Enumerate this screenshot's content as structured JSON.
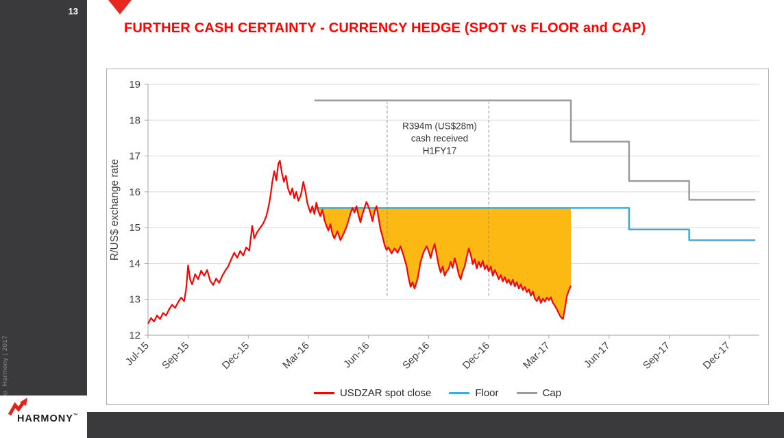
{
  "slide": {
    "page_number": "13",
    "copyright": "© Harmony | 2017",
    "title": "FURTHER CASH CERTAINTY - CURRENCY HEDGE (SPOT vs FLOOR and CAP)"
  },
  "logo": {
    "brand": "HARMONY",
    "trademark": "™"
  },
  "colors": {
    "brand_red": "#e2231a",
    "title_red": "#ff0000",
    "spot_red": "#ff0000",
    "floor_blue": "#41a8dc",
    "cap_gray": "#9b9ba4",
    "hedge_fill": "#fdb913",
    "sidebar_dark": "#3a3a3c"
  },
  "legend": [
    {
      "label": "USDZAR spot close",
      "color": "#ff0000"
    },
    {
      "label": "Floor",
      "color": "#41a8dc"
    },
    {
      "label": "Cap",
      "color": "#9b9ba4"
    }
  ],
  "chart_data": {
    "type": "line",
    "title": "",
    "ylabel": "R/US$ exchange rate",
    "ylim": [
      12,
      19
    ],
    "yticks": [
      12,
      13,
      14,
      15,
      16,
      17,
      18,
      19
    ],
    "xlim": [
      0,
      30.5
    ],
    "x_unit": "months from Jul-2015",
    "grid": "horizontal",
    "legend_position": "bottom",
    "xticks": [
      {
        "t": 0,
        "label": "Jul-15"
      },
      {
        "t": 2,
        "label": "Sep-15"
      },
      {
        "t": 5,
        "label": "Dec-15"
      },
      {
        "t": 8,
        "label": "Mar-16"
      },
      {
        "t": 11,
        "label": "Jun-16"
      },
      {
        "t": 14,
        "label": "Sep-16"
      },
      {
        "t": 17,
        "label": "Dec-16"
      },
      {
        "t": 20,
        "label": "Mar-17"
      },
      {
        "t": 23,
        "label": "Jun-17"
      },
      {
        "t": 26,
        "label": "Sep-17"
      },
      {
        "t": 29,
        "label": "Dec-17"
      }
    ],
    "annotation": {
      "lines": [
        "R394m (US$28m)",
        "cash received",
        "H1FY17"
      ],
      "t": 14.55,
      "value": 17.75
    },
    "dashed_lines": [
      {
        "t": 11.93,
        "v1": 13.1,
        "v2": 18.5
      },
      {
        "t": 17.0,
        "v1": 13.1,
        "v2": 18.5
      }
    ],
    "shaded_area": {
      "upper_series": "Floor",
      "lower_series": "USDZAR spot close",
      "from_t": 8.3,
      "to_t": 21.1,
      "color": "#fdb913"
    },
    "series": [
      {
        "name": "Cap",
        "color": "#9b9ba4",
        "width": 2.5,
        "data_name": "cap-line",
        "points": [
          [
            8.3,
            18.55
          ],
          [
            21.1,
            18.55
          ],
          [
            21.1,
            17.4
          ],
          [
            24,
            17.4
          ],
          [
            24,
            16.3
          ],
          [
            27,
            16.3
          ],
          [
            27,
            15.78
          ],
          [
            30.3,
            15.78
          ]
        ]
      },
      {
        "name": "Floor",
        "color": "#41a8dc",
        "width": 2.5,
        "data_name": "floor-line",
        "points": [
          [
            8.3,
            15.55
          ],
          [
            24,
            15.55
          ],
          [
            24,
            14.95
          ],
          [
            27,
            14.95
          ],
          [
            27,
            14.65
          ],
          [
            30.3,
            14.65
          ]
        ]
      },
      {
        "name": "USDZAR spot close",
        "color": "#ff0000",
        "width": 2.2,
        "data_name": "spot-line",
        "points": [
          [
            0,
            12.32
          ],
          [
            0.15,
            12.48
          ],
          [
            0.3,
            12.38
          ],
          [
            0.45,
            12.55
          ],
          [
            0.6,
            12.45
          ],
          [
            0.75,
            12.62
          ],
          [
            0.9,
            12.55
          ],
          [
            1.05,
            12.72
          ],
          [
            1.2,
            12.85
          ],
          [
            1.35,
            12.76
          ],
          [
            1.5,
            12.92
          ],
          [
            1.65,
            13.05
          ],
          [
            1.8,
            12.95
          ],
          [
            1.9,
            13.28
          ],
          [
            2.0,
            13.95
          ],
          [
            2.1,
            13.55
          ],
          [
            2.2,
            13.42
          ],
          [
            2.35,
            13.7
          ],
          [
            2.5,
            13.56
          ],
          [
            2.65,
            13.8
          ],
          [
            2.8,
            13.66
          ],
          [
            2.95,
            13.82
          ],
          [
            3.1,
            13.52
          ],
          [
            3.25,
            13.4
          ],
          [
            3.4,
            13.58
          ],
          [
            3.55,
            13.46
          ],
          [
            3.7,
            13.65
          ],
          [
            3.85,
            13.8
          ],
          [
            4.0,
            13.92
          ],
          [
            4.15,
            14.12
          ],
          [
            4.3,
            14.3
          ],
          [
            4.45,
            14.16
          ],
          [
            4.6,
            14.35
          ],
          [
            4.75,
            14.22
          ],
          [
            4.9,
            14.45
          ],
          [
            5.05,
            14.36
          ],
          [
            5.2,
            15.05
          ],
          [
            5.3,
            14.7
          ],
          [
            5.45,
            14.88
          ],
          [
            5.6,
            15.0
          ],
          [
            5.75,
            15.12
          ],
          [
            5.9,
            15.32
          ],
          [
            6.0,
            15.55
          ],
          [
            6.1,
            15.85
          ],
          [
            6.2,
            16.28
          ],
          [
            6.3,
            16.58
          ],
          [
            6.4,
            16.32
          ],
          [
            6.5,
            16.78
          ],
          [
            6.58,
            16.87
          ],
          [
            6.68,
            16.52
          ],
          [
            6.78,
            16.28
          ],
          [
            6.88,
            16.45
          ],
          [
            6.98,
            16.1
          ],
          [
            7.1,
            15.92
          ],
          [
            7.2,
            16.1
          ],
          [
            7.3,
            15.82
          ],
          [
            7.4,
            16.0
          ],
          [
            7.5,
            15.75
          ],
          [
            7.62,
            15.9
          ],
          [
            7.75,
            16.28
          ],
          [
            7.85,
            16.02
          ],
          [
            7.95,
            15.68
          ],
          [
            8.1,
            15.42
          ],
          [
            8.2,
            15.6
          ],
          [
            8.3,
            15.38
          ],
          [
            8.4,
            15.7
          ],
          [
            8.5,
            15.45
          ],
          [
            8.6,
            15.32
          ],
          [
            8.7,
            15.5
          ],
          [
            8.8,
            15.22
          ],
          [
            8.9,
            15.05
          ],
          [
            9.0,
            14.92
          ],
          [
            9.1,
            15.1
          ],
          [
            9.2,
            14.82
          ],
          [
            9.3,
            14.7
          ],
          [
            9.45,
            14.9
          ],
          [
            9.6,
            14.65
          ],
          [
            9.75,
            14.82
          ],
          [
            9.9,
            15.02
          ],
          [
            10.0,
            15.2
          ],
          [
            10.1,
            15.4
          ],
          [
            10.2,
            15.55
          ],
          [
            10.3,
            15.42
          ],
          [
            10.4,
            15.6
          ],
          [
            10.5,
            15.35
          ],
          [
            10.6,
            15.15
          ],
          [
            10.7,
            15.38
          ],
          [
            10.8,
            15.55
          ],
          [
            10.9,
            15.72
          ],
          [
            11.0,
            15.58
          ],
          [
            11.1,
            15.4
          ],
          [
            11.2,
            15.18
          ],
          [
            11.3,
            15.45
          ],
          [
            11.4,
            15.6
          ],
          [
            11.5,
            15.28
          ],
          [
            11.6,
            14.95
          ],
          [
            11.7,
            14.75
          ],
          [
            11.8,
            14.52
          ],
          [
            11.9,
            14.38
          ],
          [
            12.0,
            14.45
          ],
          [
            12.15,
            14.28
          ],
          [
            12.3,
            14.42
          ],
          [
            12.45,
            14.3
          ],
          [
            12.6,
            14.48
          ],
          [
            12.75,
            14.22
          ],
          [
            12.9,
            13.92
          ],
          [
            13.0,
            13.6
          ],
          [
            13.1,
            13.35
          ],
          [
            13.2,
            13.48
          ],
          [
            13.3,
            13.3
          ],
          [
            13.45,
            13.58
          ],
          [
            13.6,
            14.05
          ],
          [
            13.75,
            14.32
          ],
          [
            13.9,
            14.48
          ],
          [
            14.0,
            14.35
          ],
          [
            14.1,
            14.15
          ],
          [
            14.2,
            14.38
          ],
          [
            14.3,
            14.55
          ],
          [
            14.4,
            14.25
          ],
          [
            14.5,
            13.95
          ],
          [
            14.6,
            13.75
          ],
          [
            14.7,
            13.92
          ],
          [
            14.8,
            13.66
          ],
          [
            14.9,
            13.78
          ],
          [
            15.0,
            13.85
          ],
          [
            15.1,
            14.05
          ],
          [
            15.2,
            13.88
          ],
          [
            15.3,
            14.15
          ],
          [
            15.4,
            13.95
          ],
          [
            15.5,
            13.7
          ],
          [
            15.6,
            13.56
          ],
          [
            15.7,
            13.78
          ],
          [
            15.8,
            13.92
          ],
          [
            15.9,
            14.18
          ],
          [
            16.0,
            14.42
          ],
          [
            16.1,
            14.25
          ],
          [
            16.2,
            13.98
          ],
          [
            16.3,
            14.12
          ],
          [
            16.4,
            13.86
          ],
          [
            16.5,
            14.05
          ],
          [
            16.6,
            13.9
          ],
          [
            16.7,
            14.08
          ],
          [
            16.8,
            13.84
          ],
          [
            16.9,
            13.95
          ],
          [
            17.0,
            13.78
          ],
          [
            17.1,
            13.92
          ],
          [
            17.2,
            13.66
          ],
          [
            17.3,
            13.82
          ],
          [
            17.4,
            13.7
          ],
          [
            17.5,
            13.56
          ],
          [
            17.6,
            13.68
          ],
          [
            17.7,
            13.5
          ],
          [
            17.8,
            13.62
          ],
          [
            17.9,
            13.46
          ],
          [
            18.0,
            13.55
          ],
          [
            18.1,
            13.4
          ],
          [
            18.2,
            13.55
          ],
          [
            18.3,
            13.36
          ],
          [
            18.4,
            13.48
          ],
          [
            18.5,
            13.3
          ],
          [
            18.6,
            13.42
          ],
          [
            18.7,
            13.26
          ],
          [
            18.8,
            13.35
          ],
          [
            18.9,
            13.2
          ],
          [
            19.0,
            13.28
          ],
          [
            19.1,
            13.1
          ],
          [
            19.2,
            13.22
          ],
          [
            19.3,
            13.02
          ],
          [
            19.4,
            12.95
          ],
          [
            19.5,
            13.08
          ],
          [
            19.6,
            12.9
          ],
          [
            19.7,
            13.02
          ],
          [
            19.8,
            12.94
          ],
          [
            19.9,
            13.05
          ],
          [
            20.0,
            12.98
          ],
          [
            20.1,
            13.06
          ],
          [
            20.2,
            12.9
          ],
          [
            20.3,
            12.82
          ],
          [
            20.4,
            12.72
          ],
          [
            20.5,
            12.6
          ],
          [
            20.6,
            12.5
          ],
          [
            20.7,
            12.45
          ],
          [
            20.8,
            12.75
          ],
          [
            20.9,
            13.1
          ],
          [
            21.0,
            13.25
          ],
          [
            21.1,
            13.38
          ]
        ]
      }
    ]
  }
}
